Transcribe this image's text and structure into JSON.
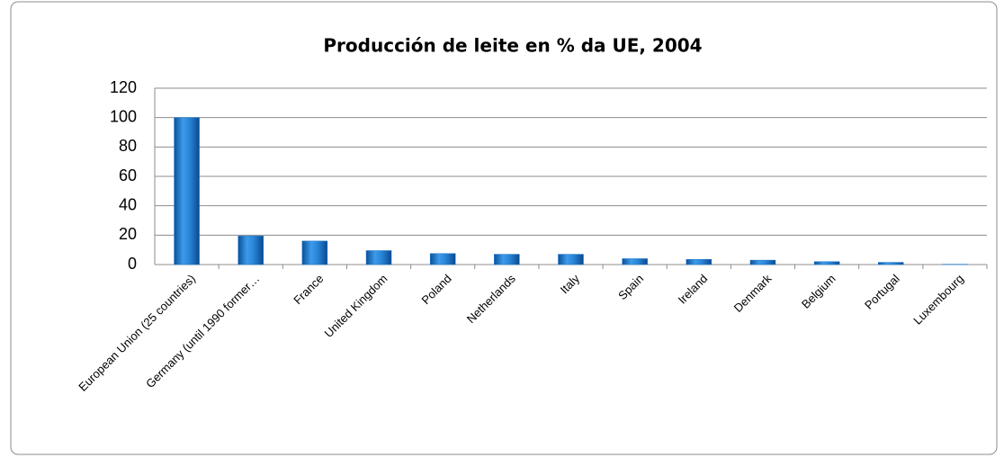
{
  "chart_data": {
    "type": "bar",
    "title": "Producción de leite en % da UE, 2004",
    "categories": [
      "European Union (25 countries)",
      "Germany (until 1990 former…",
      "France",
      "United Kingdom",
      "Poland",
      "Netherlands",
      "Italy",
      "Spain",
      "Ireland",
      "Denmark",
      "Belgium",
      "Portugal",
      "Luxembourg"
    ],
    "values": [
      100,
      19.5,
      16,
      9.5,
      7.5,
      7,
      7,
      4,
      3.5,
      3,
      2,
      1.5,
      0.2
    ],
    "color": "#1f78d1",
    "ylim": [
      0,
      120
    ],
    "yticks": [
      0,
      20,
      40,
      60,
      80,
      100,
      120
    ],
    "grid": true
  }
}
